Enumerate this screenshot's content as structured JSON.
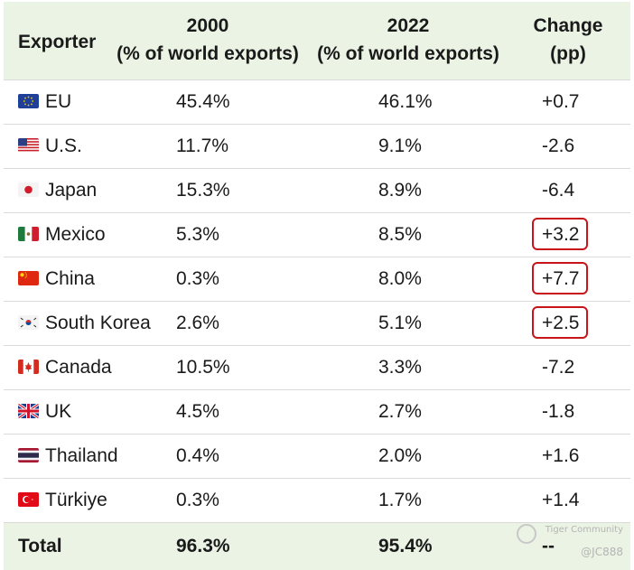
{
  "header": {
    "exporter": "Exporter",
    "y2000_line1": "2000",
    "y2000_line2": "(% of world exports)",
    "y2022_line1": "2022",
    "y2022_line2": "(% of world exports)",
    "change_line1": "Change",
    "change_line2": "(pp)"
  },
  "rows": [
    {
      "country": "EU",
      "flag": "eu-flag-icon",
      "v2000": "45.4%",
      "v2022": "46.1%",
      "change": "+0.7",
      "highlighted": false
    },
    {
      "country": "U.S.",
      "flag": "us-flag-icon",
      "v2000": "11.7%",
      "v2022": "9.1%",
      "change": "-2.6",
      "highlighted": false
    },
    {
      "country": "Japan",
      "flag": "japan-flag-icon",
      "v2000": "15.3%",
      "v2022": "8.9%",
      "change": "-6.4",
      "highlighted": false
    },
    {
      "country": "Mexico",
      "flag": "mexico-flag-icon",
      "v2000": "5.3%",
      "v2022": "8.5%",
      "change": "+3.2",
      "highlighted": true
    },
    {
      "country": "China",
      "flag": "china-flag-icon",
      "v2000": "0.3%",
      "v2022": "8.0%",
      "change": "+7.7",
      "highlighted": true
    },
    {
      "country": "South Korea",
      "flag": "south-korea-flag-icon",
      "v2000": "2.6%",
      "v2022": "5.1%",
      "change": "+2.5",
      "highlighted": true
    },
    {
      "country": "Canada",
      "flag": "canada-flag-icon",
      "v2000": "10.5%",
      "v2022": "3.3%",
      "change": "-7.2",
      "highlighted": false
    },
    {
      "country": "UK",
      "flag": "uk-flag-icon",
      "v2000": "4.5%",
      "v2022": "2.7%",
      "change": "-1.8",
      "highlighted": false
    },
    {
      "country": "Thailand",
      "flag": "thailand-flag-icon",
      "v2000": "0.4%",
      "v2022": "2.0%",
      "change": "+1.6",
      "highlighted": false
    },
    {
      "country": "Türkiye",
      "flag": "turkiye-flag-icon",
      "v2000": "0.3%",
      "v2022": "1.7%",
      "change": "+1.4",
      "highlighted": false
    }
  ],
  "total": {
    "label": "Total",
    "v2000": "96.3%",
    "v2022": "95.4%",
    "change": "--"
  },
  "watermark": {
    "brand": "Tiger Community",
    "user": "@JC888"
  },
  "colors": {
    "header_bg": "#eaf3e4",
    "highlight": "#c8151b",
    "row_border": "#dadada"
  }
}
